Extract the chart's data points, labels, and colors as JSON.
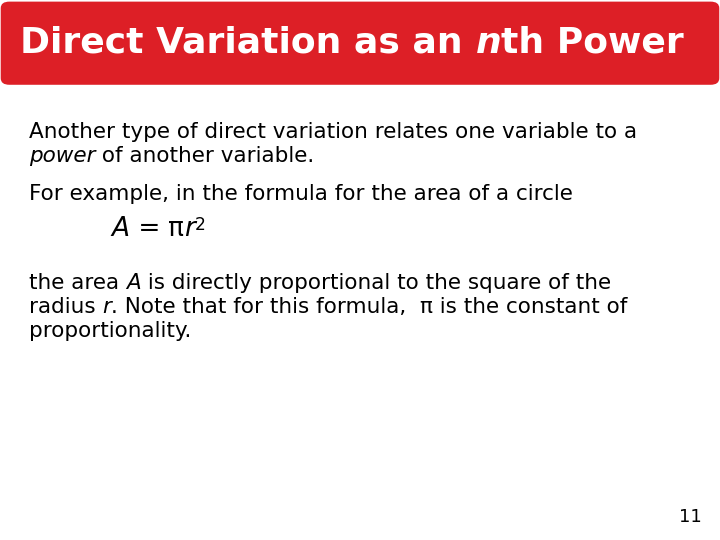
{
  "title_part1": "Direct Variation as an ",
  "title_part2": "n",
  "title_part3": "th Power",
  "title_color": "#ffffff",
  "title_bg_color": "#dd1f26",
  "bg_color": "#ffffff",
  "font_size_title": 26,
  "font_size_body": 15.5,
  "font_size_formula": 19,
  "font_size_page": 13,
  "page_number": "11",
  "line1": "Another type of direct variation relates one variable to a",
  "line2a": "power",
  "line2b": " of another variable.",
  "line3": "For example, in the formula for the area of a circle",
  "formula_a": "A",
  "formula_b": " = ",
  "formula_pi": "π",
  "formula_r": "r",
  "formula_2": "2",
  "line5a": "the area ",
  "line5b": "A",
  "line5c": " is directly proportional to the square of the",
  "line6a": "radius ",
  "line6b": "r",
  "line6c": ". Note that for this formula,  π is the constant of",
  "line7": "proportionality."
}
